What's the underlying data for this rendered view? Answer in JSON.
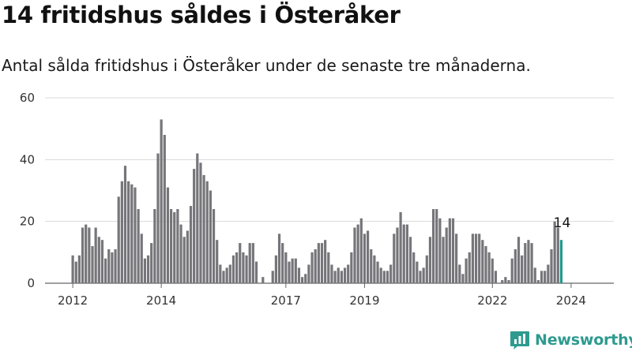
{
  "title": "14 fritidshus såldes i Österåker",
  "subtitle": "Antal sålda fritidshus i Österåker under de senaste tre månaderna.",
  "brand": {
    "name": "Newsworthy",
    "icon": "newsworthy-logo-icon",
    "color": "#2e9a8f"
  },
  "colors": {
    "bar": "#76757a",
    "highlight": "#1f9a8c",
    "grid": "#d9d9d9"
  },
  "chart_data": {
    "type": "bar",
    "ylim": [
      0,
      60
    ],
    "yticks": [
      0,
      20,
      40,
      60
    ],
    "grid": true,
    "x_tick_labels": [
      "2012",
      "2014",
      "2017",
      "2019",
      "2022",
      "2024"
    ],
    "x_tick_bar_index": [
      0,
      27,
      65,
      89,
      128,
      152
    ],
    "values": [
      9,
      7,
      9,
      18,
      19,
      18,
      12,
      18,
      15,
      14,
      8,
      11,
      10,
      11,
      28,
      33,
      38,
      33,
      32,
      31,
      24,
      16,
      8,
      9,
      13,
      24,
      42,
      53,
      48,
      31,
      24,
      23,
      24,
      19,
      15,
      17,
      25,
      37,
      42,
      39,
      35,
      33,
      30,
      24,
      14,
      6,
      4,
      5,
      6,
      9,
      10,
      13,
      10,
      9,
      13,
      13,
      7,
      0,
      2,
      0,
      0,
      4,
      9,
      16,
      13,
      10,
      7,
      8,
      8,
      5,
      2,
      3,
      6,
      10,
      11,
      13,
      13,
      14,
      10,
      6,
      4,
      5,
      4,
      5,
      6,
      10,
      18,
      19,
      21,
      16,
      17,
      11,
      9,
      7,
      5,
      4,
      4,
      6,
      16,
      18,
      23,
      19,
      19,
      15,
      10,
      7,
      4,
      5,
      9,
      15,
      24,
      24,
      21,
      15,
      18,
      21,
      21,
      16,
      6,
      3,
      8,
      10,
      16,
      16,
      16,
      14,
      12,
      10,
      8,
      4,
      0,
      1,
      2,
      1,
      8,
      11,
      15,
      9,
      13,
      14,
      13,
      5,
      1,
      4,
      4,
      6,
      11,
      20,
      18,
      14
    ],
    "highlight_index": 149,
    "annotations": [
      {
        "bar_index": 149,
        "text": "14"
      }
    ]
  }
}
